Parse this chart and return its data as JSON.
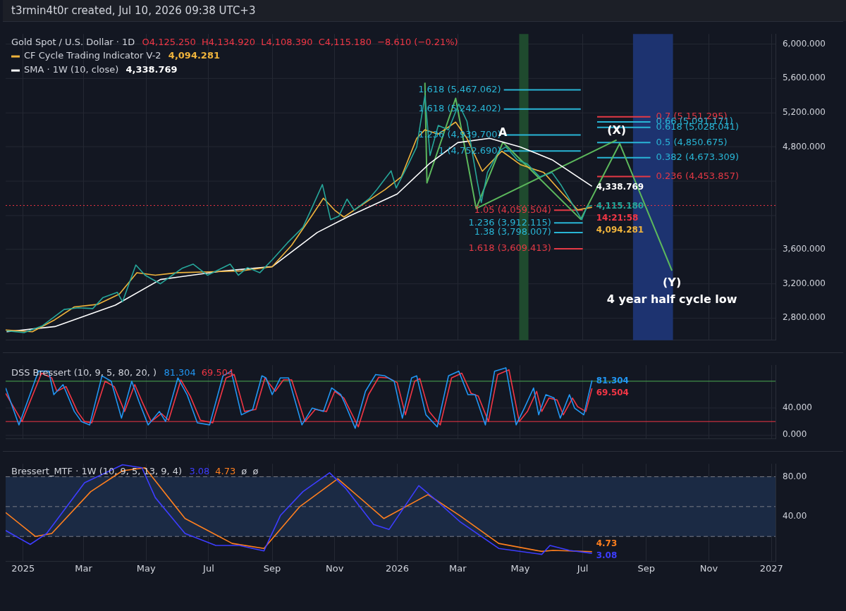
{
  "chart_data": [
    {
      "type": "line",
      "title": "Gold Spot / U.S. Dollar · 1D",
      "subtitle": "O4,125.250  H4,134.920  L4,108.390  C4,115.180  −8.610 (−0.21%)",
      "legend": "top left",
      "grid": true,
      "tick_labels": "y",
      "xlim": [
        "2024-12-15",
        "2027-01-05"
      ],
      "xticks": [
        {
          "value": "2025-01-01",
          "label": null
        },
        {
          "value": "2025-03-01",
          "label": null
        },
        {
          "value": "2025-05-01",
          "label": null
        },
        {
          "value": "2025-07-01",
          "label": null
        },
        {
          "value": "2025-09-01",
          "label": null
        },
        {
          "value": "2025-11-01",
          "label": null
        },
        {
          "value": "2026-01-01",
          "label": null
        },
        {
          "value": "2026-03-01",
          "label": null
        },
        {
          "value": "2026-05-01",
          "label": null
        },
        {
          "value": "2026-07-01",
          "label": null
        },
        {
          "value": "2026-09-01",
          "label": null
        },
        {
          "value": "2026-11-01",
          "label": null
        },
        {
          "value": "2027-01-01",
          "label": null
        }
      ],
      "ylim": [
        2540,
        6120
      ],
      "yticks": [
        {
          "value": 2800,
          "label": "2,800.000"
        },
        {
          "value": 3200,
          "label": "3,200.000"
        },
        {
          "value": 3600,
          "label": "3,600.000"
        },
        {
          "value": 4000,
          "label": null
        },
        {
          "value": 4400,
          "label": null
        },
        {
          "value": 4800,
          "label": "4,800.000"
        },
        {
          "value": 5200,
          "label": "5,200.000"
        },
        {
          "value": 5600,
          "label": "5,600.000"
        },
        {
          "value": 6000,
          "label": "6,000.000"
        }
      ],
      "series": [
        {
          "color": "#26a69a",
          "value_labels": [
            null,
            null,
            null,
            null,
            null,
            null,
            null,
            null,
            null,
            null,
            null,
            null,
            null,
            null,
            null,
            null,
            null,
            null,
            null,
            null,
            null,
            null,
            null,
            null,
            null,
            null,
            null,
            null,
            null,
            null,
            null,
            null,
            null,
            null,
            null,
            null,
            null,
            null,
            null,
            null,
            null,
            null,
            null,
            null,
            null,
            null,
            null,
            null,
            null,
            null,
            null,
            null,
            null,
            "4,115.180"
          ],
          "x": [
            "2024-12-16",
            "2025-01-02",
            "2025-01-20",
            "2025-02-10",
            "2025-02-24",
            "2025-03-10",
            "2025-03-20",
            "2025-04-03",
            "2025-04-08",
            "2025-04-21",
            "2025-04-30",
            "2025-05-15",
            "2025-06-05",
            "2025-06-16",
            "2025-06-30",
            "2025-07-22",
            "2025-07-30",
            "2025-08-08",
            "2025-08-20",
            "2025-09-01",
            "2025-09-16",
            "2025-10-01",
            "2025-10-08",
            "2025-10-20",
            "2025-10-28",
            "2025-11-05",
            "2025-11-13",
            "2025-11-20",
            "2025-12-05",
            "2025-12-12",
            "2025-12-26",
            "2025-12-31",
            "2026-01-12",
            "2026-01-20",
            "2026-01-28",
            "2026-02-02",
            "2026-02-10",
            "2026-02-20",
            "2026-03-02",
            "2026-03-10",
            "2026-03-20",
            "2026-03-24",
            "2026-03-30",
            "2026-04-10",
            "2026-04-17",
            "2026-04-28",
            "2026-05-08",
            "2026-05-20",
            "2026-06-01",
            "2026-06-10",
            "2026-06-20",
            "2026-06-30",
            "2026-07-05",
            "2026-07-10"
          ],
          "values": [
            2650,
            2630,
            2710,
            2900,
            2920,
            2910,
            3040,
            3100,
            2990,
            3420,
            3300,
            3200,
            3380,
            3430,
            3300,
            3430,
            3300,
            3390,
            3330,
            3480,
            3680,
            3860,
            4040,
            4360,
            3950,
            3990,
            4190,
            4060,
            4200,
            4300,
            4520,
            4320,
            4600,
            4800,
            5400,
            4700,
            5050,
            5000,
            5300,
            5100,
            4400,
            4150,
            4500,
            4750,
            4800,
            4650,
            4600,
            4450,
            4500,
            4350,
            4150,
            3950,
            4100,
            4115.18
          ]
        },
        {
          "name": "CF Cycle Trading Indicator V-2",
          "color": "#f0b43c",
          "value_labels": [
            null,
            null,
            null,
            null,
            null,
            null,
            null,
            null,
            null,
            null,
            null,
            null,
            null,
            null,
            null,
            null,
            null,
            null,
            null,
            null,
            null,
            null,
            null,
            null,
            null,
            null,
            null,
            null,
            null,
            null,
            null,
            "4,094.281"
          ],
          "x": [
            "2024-12-15",
            "2025-01-10",
            "2025-02-01",
            "2025-02-20",
            "2025-03-15",
            "2025-04-05",
            "2025-04-22",
            "2025-05-10",
            "2025-06-01",
            "2025-07-01",
            "2025-08-01",
            "2025-09-01",
            "2025-09-20",
            "2025-10-10",
            "2025-10-21",
            "2025-11-01",
            "2025-11-10",
            "2025-12-01",
            "2025-12-20",
            "2026-01-05",
            "2026-01-20",
            "2026-01-28",
            "2026-02-10",
            "2026-02-27",
            "2026-03-10",
            "2026-03-25",
            "2026-04-13",
            "2026-05-01",
            "2026-05-24",
            "2026-06-12",
            "2026-06-26",
            "2026-07-10"
          ],
          "values": [
            2660,
            2640,
            2780,
            2930,
            2960,
            3080,
            3330,
            3300,
            3330,
            3340,
            3350,
            3400,
            3650,
            4000,
            4200,
            4060,
            3980,
            4150,
            4300,
            4450,
            4900,
            5000,
            4950,
            5090,
            4900,
            4515,
            4750,
            4594,
            4500,
            4246,
            4065,
            4094.281
          ]
        },
        {
          "name": "SMA · 1W (10, close)",
          "color": "#ffffff",
          "value_labels": [
            null,
            null,
            null,
            null,
            null,
            null,
            null,
            null,
            null,
            null,
            null,
            null,
            null,
            null,
            "4,338.769"
          ],
          "x": [
            "2024-12-16",
            "2025-02-01",
            "2025-04-01",
            "2025-05-15",
            "2025-07-15",
            "2025-09-01",
            "2025-10-15",
            "2025-11-15",
            "2026-01-01",
            "2026-02-01",
            "2026-03-01",
            "2026-04-01",
            "2026-05-01",
            "2026-06-01",
            "2026-07-10"
          ],
          "values": [
            2640,
            2700,
            2950,
            3250,
            3350,
            3400,
            3800,
            3990,
            4250,
            4600,
            4850,
            4900,
            4800,
            4650,
            4338.769
          ]
        },
        {
          "type": "line",
          "color": "#5cb85c",
          "x": [
            "2026-01-28",
            "2026-01-30",
            "2026-02-27",
            "2026-03-19",
            "2026-04-14",
            "2026-06-29",
            "2026-08-06",
            "2026-09-26"
          ],
          "values": [
            5550,
            4380,
            5368,
            4080,
            4855,
            3954,
            4839,
            3354
          ]
        },
        {
          "type": "line",
          "color": "#5cb85c",
          "x": [
            "2026-03-19",
            "2026-08-03"
          ],
          "values": [
            4080,
            4880
          ]
        },
        {
          "type": "line",
          "name": "1.618 (5,467.062)",
          "color": "#29b6d6",
          "x": [
            "2026-04-15",
            "2026-06-29"
          ],
          "values": [
            5467.062,
            5467.062
          ]
        },
        {
          "type": "line",
          "name": "1.618 (5,242.402)",
          "color": "#29b6d6",
          "x": [
            "2026-04-15",
            "2026-06-29"
          ],
          "values": [
            5242.402,
            5242.402
          ]
        },
        {
          "type": "line",
          "name": "1.236 (4,939.700)",
          "color": "#29b6d6",
          "x": [
            "2026-04-15",
            "2026-06-29"
          ],
          "values": [
            4939.7,
            4939.7
          ]
        },
        {
          "type": "line",
          "name": "1 (4,752.690)",
          "color": "#29b6d6",
          "x": [
            "2026-04-15",
            "2026-06-29"
          ],
          "values": [
            4752.69,
            4752.69
          ]
        },
        {
          "type": "line",
          "name": "0.7 (5,151.295)",
          "color": "#e53945",
          "x": [
            "2026-07-15",
            "2026-09-05"
          ],
          "values": [
            5151.295,
            5151.295
          ]
        },
        {
          "type": "line",
          "name": "0.66 (5,091.171)",
          "color": "#29b6d6",
          "x": [
            "2026-07-15",
            "2026-09-05"
          ],
          "values": [
            5091.171,
            5091.171
          ]
        },
        {
          "type": "line",
          "name": "0.618 (5,028.041)",
          "color": "#29b6d6",
          "x": [
            "2026-07-15",
            "2026-09-05"
          ],
          "values": [
            5028.041,
            5028.041
          ]
        },
        {
          "type": "line",
          "name": "0.5 (4,850.675)",
          "color": "#29b6d6",
          "x": [
            "2026-07-15",
            "2026-09-05"
          ],
          "values": [
            4850.675,
            4850.675
          ]
        },
        {
          "type": "line",
          "name": "0.382 (4,673.309)",
          "color": "#29b6d6",
          "x": [
            "2026-07-15",
            "2026-09-05"
          ],
          "values": [
            4673.309,
            4673.309
          ]
        },
        {
          "type": "line",
          "name": "0.236 (4,453.857)",
          "color": "#e53945",
          "x": [
            "2026-07-15",
            "2026-09-05"
          ],
          "values": [
            4453.857,
            4453.857
          ]
        },
        {
          "type": "line",
          "name": "1.05 (4,059.504)",
          "color": "#e53945",
          "x": [
            "2026-06-03",
            "2026-07-01"
          ],
          "values": [
            4059.504,
            4059.504
          ]
        },
        {
          "type": "line",
          "name": "1.236 (3,912.115)",
          "color": "#29b6d6",
          "x": [
            "2026-06-03",
            "2026-07-01"
          ],
          "values": [
            3912.115,
            3912.115
          ]
        },
        {
          "type": "line",
          "name": "1.38 (3,798.007)",
          "color": "#29b6d6",
          "x": [
            "2026-06-03",
            "2026-07-01"
          ],
          "values": [
            3798.007,
            3798.007
          ]
        },
        {
          "type": "line",
          "name": "1.618 (3,609.413)",
          "color": "#e53945",
          "x": [
            "2026-06-03",
            "2026-07-01"
          ],
          "values": [
            3609.413,
            3609.413
          ]
        }
      ],
      "bands": [
        {
          "axis": "x",
          "from": "2026-04-30",
          "to": "2026-05-09",
          "color": "#1f4a2e"
        },
        {
          "axis": "x",
          "from": "2026-08-19",
          "to": "2026-09-27",
          "color": "#1d3370"
        }
      ],
      "ref_lines": [
        {
          "axis": "y",
          "value": 4115.18,
          "color": "#f23645",
          "line_style": "dotted"
        }
      ],
      "annotations": [
        "t3rmin4t0r created, Jul 10, 2026 09:38 UTC+3",
        "14:21:58",
        {
          "text": "A",
          "x": "2026-04-14",
          "y": 4960
        },
        {
          "text": "(X)",
          "x": "2026-08-03",
          "y": 4990
        },
        {
          "text": "(Y)",
          "x": "2026-09-26",
          "y": 3210
        },
        {
          "text": "4 year half cycle low",
          "x": "2026-09-26",
          "y": 3354
        }
      ]
    },
    {
      "type": "line",
      "title": "DSS Bressert (10, 9, 5, 80, 20, )",
      "grid": true,
      "tick_labels": "y",
      "xlim": [
        "2024-12-15",
        "2027-01-05"
      ],
      "xticks": [
        {
          "value": "2025-01-01",
          "label": null
        },
        {
          "value": "2025-03-01",
          "label": null
        },
        {
          "value": "2025-05-01",
          "label": null
        },
        {
          "value": "2025-07-01",
          "label": null
        },
        {
          "value": "2025-09-01",
          "label": null
        },
        {
          "value": "2025-11-01",
          "label": null
        },
        {
          "value": "2026-01-01",
          "label": null
        },
        {
          "value": "2026-03-01",
          "label": null
        },
        {
          "value": "2026-05-01",
          "label": null
        },
        {
          "value": "2026-07-01",
          "label": null
        },
        {
          "value": "2026-09-01",
          "label": null
        },
        {
          "value": "2026-11-01",
          "label": null
        },
        {
          "value": "2027-01-01",
          "label": null
        }
      ],
      "ylim": [
        -6,
        104
      ],
      "yticks": [
        {
          "value": 0,
          "label": "0.000"
        },
        {
          "value": 40,
          "label": "40.000"
        }
      ],
      "ref_lines": [
        {
          "axis": "y",
          "value": 80,
          "color": "#4caf50"
        },
        {
          "axis": "y",
          "value": 20,
          "color": "#f23645"
        }
      ],
      "series": [
        {
          "color": "#2196f3",
          "value_labels": [
            null,
            null,
            null,
            null,
            null,
            null,
            null,
            null,
            null,
            null,
            null,
            null,
            null,
            null,
            null,
            null,
            null,
            null,
            null,
            null,
            null,
            null,
            null,
            null,
            null,
            null,
            null,
            null,
            null,
            null,
            null,
            null,
            null,
            null,
            null,
            null,
            null,
            null,
            null,
            null,
            null,
            null,
            null,
            null,
            null,
            null,
            null,
            null,
            null,
            null,
            null,
            null,
            null,
            null,
            null,
            null,
            null,
            null,
            null,
            null,
            null,
            null,
            null,
            "81.304"
          ],
          "x": [
            "2024-12-15",
            "2024-12-28",
            "2025-01-16",
            "2025-01-26",
            "2025-01-31",
            "2025-02-09",
            "2025-02-20",
            "2025-02-27",
            "2025-03-07",
            "2025-03-19",
            "2025-03-28",
            "2025-04-07",
            "2025-04-17",
            "2025-04-24",
            "2025-05-03",
            "2025-05-14",
            "2025-05-20",
            "2025-06-01",
            "2025-06-10",
            "2025-06-20",
            "2025-07-02",
            "2025-07-15",
            "2025-07-23",
            "2025-08-02",
            "2025-08-13",
            "2025-08-22",
            "2025-08-26",
            "2025-09-01",
            "2025-09-09",
            "2025-09-17",
            "2025-09-30",
            "2025-10-10",
            "2025-10-21",
            "2025-10-29",
            "2025-11-07",
            "2025-11-10",
            "2025-11-21",
            "2025-12-01",
            "2025-12-11",
            "2025-12-20",
            "2025-12-29",
            "2026-01-06",
            "2026-01-15",
            "2026-01-20",
            "2026-01-29",
            "2026-02-09",
            "2026-02-20",
            "2026-03-02",
            "2026-03-11",
            "2026-03-18",
            "2026-03-28",
            "2026-04-06",
            "2026-04-17",
            "2026-04-27",
            "2026-05-05",
            "2026-05-14",
            "2026-05-19",
            "2026-05-26",
            "2026-06-03",
            "2026-06-09",
            "2026-06-18",
            "2026-06-23",
            "2026-07-02",
            "2026-07-10"
          ],
          "values": [
            70,
            15,
            95,
            95,
            60,
            75,
            35,
            20,
            15,
            88,
            80,
            25,
            80,
            50,
            15,
            35,
            20,
            85,
            60,
            18,
            15,
            88,
            95,
            30,
            38,
            88,
            85,
            60,
            85,
            85,
            15,
            40,
            35,
            70,
            60,
            50,
            10,
            65,
            90,
            88,
            80,
            25,
            85,
            88,
            30,
            12,
            88,
            95,
            60,
            60,
            15,
            95,
            100,
            15,
            40,
            70,
            30,
            60,
            55,
            25,
            60,
            40,
            30,
            81.304
          ]
        },
        {
          "color": "#f23645",
          "value_labels": [
            null,
            null,
            null,
            null,
            null,
            null,
            null,
            null,
            null,
            null,
            null,
            null,
            null,
            null,
            null,
            null,
            null,
            null,
            null,
            null,
            null,
            null,
            null,
            null,
            null,
            null,
            null,
            null,
            null,
            null,
            null,
            null,
            null,
            null,
            null,
            null,
            null,
            null,
            null,
            null,
            null,
            null,
            null,
            null,
            null,
            null,
            null,
            null,
            null,
            null,
            null,
            null,
            null,
            null,
            null,
            null,
            null,
            null,
            null,
            null,
            null,
            "69.504"
          ],
          "x": [
            "2024-12-15",
            "2024-12-31",
            "2025-01-19",
            "2025-01-29",
            "2025-02-03",
            "2025-02-12",
            "2025-02-23",
            "2025-03-02",
            "2025-03-09",
            "2025-03-22",
            "2025-03-31",
            "2025-04-10",
            "2025-04-20",
            "2025-04-27",
            "2025-05-06",
            "2025-05-16",
            "2025-05-23",
            "2025-06-04",
            "2025-06-13",
            "2025-06-23",
            "2025-07-05",
            "2025-07-18",
            "2025-07-26",
            "2025-08-05",
            "2025-08-16",
            "2025-08-25",
            "2025-09-04",
            "2025-09-12",
            "2025-09-20",
            "2025-10-03",
            "2025-10-13",
            "2025-10-24",
            "2025-11-01",
            "2025-11-10",
            "2025-11-24",
            "2025-12-04",
            "2025-12-14",
            "2025-12-23",
            "2026-01-01",
            "2026-01-09",
            "2026-01-18",
            "2026-01-23",
            "2026-02-01",
            "2026-02-12",
            "2026-02-23",
            "2026-03-05",
            "2026-03-14",
            "2026-03-21",
            "2026-03-31",
            "2026-04-09",
            "2026-04-20",
            "2026-04-30",
            "2026-05-08",
            "2026-05-17",
            "2026-05-22",
            "2026-05-29",
            "2026-06-06",
            "2026-06-12",
            "2026-06-21",
            "2026-06-26",
            "2026-07-04",
            "2026-07-10"
          ],
          "values": [
            62,
            20,
            92,
            85,
            65,
            72,
            35,
            20,
            18,
            80,
            72,
            35,
            75,
            50,
            20,
            32,
            22,
            82,
            58,
            22,
            18,
            85,
            90,
            35,
            38,
            85,
            65,
            82,
            82,
            20,
            38,
            35,
            65,
            55,
            12,
            60,
            86,
            85,
            78,
            30,
            80,
            84,
            35,
            15,
            85,
            92,
            62,
            58,
            20,
            90,
            97,
            20,
            35,
            65,
            35,
            55,
            52,
            30,
            55,
            42,
            35,
            69.504
          ]
        }
      ]
    },
    {
      "type": "line",
      "title": "Bressert_MTF · 1W (10, 9, 5, 13, 9, 4)",
      "subtitle": "ø  ø",
      "grid": true,
      "xlim": [
        "2024-12-15",
        "2027-01-05"
      ],
      "xticks": [
        {
          "value": "2025-01-01",
          "label": "2025"
        },
        {
          "value": "2025-03-01",
          "label": "Mar"
        },
        {
          "value": "2025-05-01",
          "label": "May"
        },
        {
          "value": "2025-07-01",
          "label": "Jul"
        },
        {
          "value": "2025-09-01",
          "label": "Sep"
        },
        {
          "value": "2025-11-01",
          "label": "Nov"
        },
        {
          "value": "2026-01-01",
          "label": "2026"
        },
        {
          "value": "2026-03-01",
          "label": "Mar"
        },
        {
          "value": "2026-05-01",
          "label": "May"
        },
        {
          "value": "2026-07-01",
          "label": "Jul"
        },
        {
          "value": "2026-09-01",
          "label": "Sep"
        },
        {
          "value": "2026-11-01",
          "label": "Nov"
        },
        {
          "value": "2027-01-01",
          "label": "2027"
        }
      ],
      "ylim": [
        -5,
        93
      ],
      "yticks": [
        {
          "value": 40,
          "label": "40.00"
        },
        {
          "value": 80,
          "label": "80.00"
        }
      ],
      "bands": [
        {
          "axis": "y",
          "from": 20,
          "to": 80,
          "color": "#1b2a44"
        }
      ],
      "ref_lines": [
        {
          "axis": "y",
          "value": 80,
          "color": "#787b86",
          "line_style": "dashed"
        },
        {
          "axis": "y",
          "value": 50,
          "color": "#787b86",
          "line_style": "dashed"
        },
        {
          "axis": "y",
          "value": 20,
          "color": "#787b86",
          "line_style": "dashed"
        }
      ],
      "series": [
        {
          "color": "#3d3dff",
          "value_labels": [
            null,
            null,
            null,
            null,
            null,
            null,
            null,
            null,
            null,
            null,
            null,
            null,
            null,
            null,
            null,
            null,
            null,
            null,
            null,
            null,
            null,
            null,
            null,
            null,
            "3.08"
          ],
          "x": [
            "2024-12-15",
            "2025-01-08",
            "2025-01-24",
            "2025-03-02",
            "2025-04-08",
            "2025-04-27",
            "2025-05-10",
            "2025-06-08",
            "2025-07-08",
            "2025-07-31",
            "2025-08-24",
            "2025-09-09",
            "2025-10-01",
            "2025-10-27",
            "2025-11-12",
            "2025-12-09",
            "2025-12-24",
            "2026-01-22",
            "2026-02-05",
            "2026-03-03",
            "2026-04-10",
            "2026-05-22",
            "2026-05-30",
            "2026-06-18",
            "2026-07-10"
          ],
          "values": [
            26,
            12,
            23,
            74,
            92,
            89,
            59,
            23,
            11,
            11,
            5.5,
            41,
            65,
            84,
            68,
            32,
            27,
            71,
            59,
            35,
            8,
            2,
            11,
            6,
            3.08
          ]
        },
        {
          "color": "#ff7f1e",
          "value_labels": [
            null,
            null,
            null,
            null,
            null,
            null,
            null,
            null,
            null,
            null,
            null,
            null,
            null,
            null,
            null,
            null,
            null,
            "4.73"
          ],
          "x": [
            "2024-12-15",
            "2025-01-13",
            "2025-01-29",
            "2025-03-08",
            "2025-04-08",
            "2025-04-30",
            "2025-06-08",
            "2025-07-24",
            "2025-08-24",
            "2025-09-28",
            "2025-11-04",
            "2025-12-19",
            "2026-01-31",
            "2026-03-03",
            "2026-04-10",
            "2026-05-22",
            "2026-06-02",
            "2026-07-10"
          ],
          "values": [
            44,
            20,
            23,
            65,
            86,
            89,
            38,
            13,
            8,
            50,
            78,
            38,
            62,
            41,
            13,
            5,
            6,
            4.73
          ]
        }
      ]
    }
  ]
}
